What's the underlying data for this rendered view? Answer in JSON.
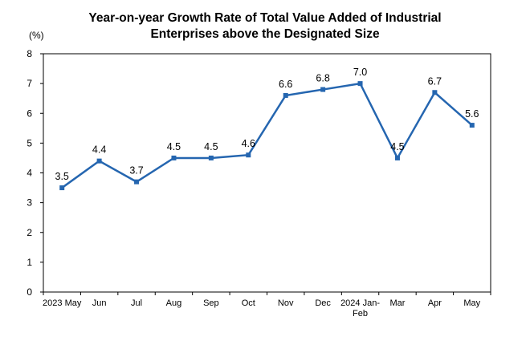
{
  "chart_data": {
    "type": "line",
    "title": [
      "Year-on-year Growth Rate of Total Value Added of Industrial",
      "Enterprises above the Designated Size"
    ],
    "ylabel": "(%)",
    "xlabel": "",
    "ylim": [
      0,
      8
    ],
    "yticks": [
      "0",
      "1",
      "2",
      "3",
      "4",
      "5",
      "6",
      "7",
      "8"
    ],
    "grid": false,
    "legend": "none",
    "color": "#2566b0",
    "categories": [
      [
        "2023 May"
      ],
      [
        "Jun"
      ],
      [
        "Jul"
      ],
      [
        "Aug"
      ],
      [
        "Sep"
      ],
      [
        "Oct"
      ],
      [
        "Nov"
      ],
      [
        "Dec"
      ],
      [
        "2024 Jan-",
        "Feb"
      ],
      [
        "Mar"
      ],
      [
        "Apr"
      ],
      [
        "May"
      ]
    ],
    "values": [
      3.5,
      4.4,
      3.7,
      4.5,
      4.5,
      4.6,
      6.6,
      6.8,
      7.0,
      4.5,
      6.7,
      5.6
    ],
    "value_labels": [
      "3.5",
      "4.4",
      "3.7",
      "4.5",
      "4.5",
      "4.6",
      "6.6",
      "6.8",
      "7.0",
      "4.5",
      "6.7",
      "5.6"
    ]
  }
}
